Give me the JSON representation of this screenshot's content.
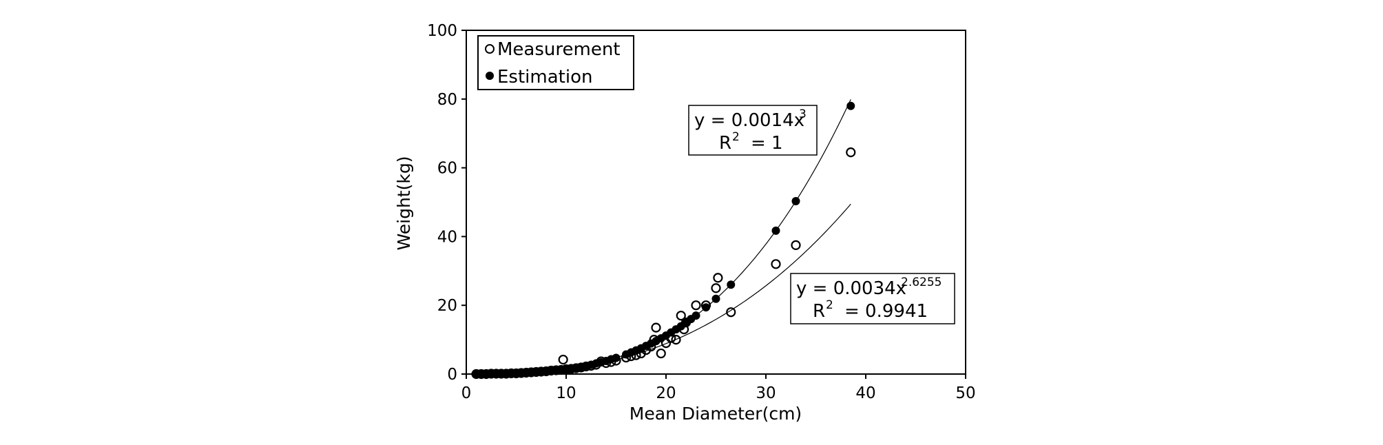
{
  "chart_data": {
    "type": "scatter",
    "xlabel": "Mean Diameter(cm)",
    "ylabel": "Weight(kg)",
    "xlim": [
      0,
      50
    ],
    "ylim": [
      0,
      100
    ],
    "x_ticks": [
      "0",
      "10",
      "20",
      "30",
      "40",
      "50"
    ],
    "y_ticks": [
      "0",
      "20",
      "40",
      "60",
      "80",
      "100"
    ],
    "grid": false,
    "legend_position": "top-left",
    "legend": [
      {
        "label": "Measurement",
        "marker": "open-circle"
      },
      {
        "label": "Estimation",
        "marker": "filled-circle"
      }
    ],
    "series": [
      {
        "name": "Measurement",
        "marker": "open-circle",
        "points": [
          [
            1.0,
            0.0
          ],
          [
            1.5,
            0.0
          ],
          [
            2.0,
            0.0
          ],
          [
            2.5,
            0.1
          ],
          [
            3.0,
            0.1
          ],
          [
            3.5,
            0.1
          ],
          [
            4.0,
            0.1
          ],
          [
            4.5,
            0.2
          ],
          [
            5.0,
            0.2
          ],
          [
            5.5,
            0.3
          ],
          [
            6.0,
            0.4
          ],
          [
            6.5,
            0.5
          ],
          [
            7.0,
            0.6
          ],
          [
            7.5,
            0.7
          ],
          [
            8.0,
            0.8
          ],
          [
            8.5,
            1.0
          ],
          [
            9.0,
            1.1
          ],
          [
            9.5,
            1.2
          ],
          [
            9.7,
            4.2
          ],
          [
            10.0,
            1.4
          ],
          [
            10.5,
            1.5
          ],
          [
            11.0,
            1.7
          ],
          [
            11.5,
            1.9
          ],
          [
            12.0,
            2.2
          ],
          [
            12.5,
            2.4
          ],
          [
            13.0,
            2.7
          ],
          [
            13.5,
            3.7
          ],
          [
            14.0,
            3.2
          ],
          [
            14.5,
            3.5
          ],
          [
            15.0,
            3.9
          ],
          [
            16.0,
            4.8
          ],
          [
            16.5,
            5.2
          ],
          [
            17.0,
            5.5
          ],
          [
            17.5,
            6.0
          ],
          [
            18.0,
            7.0
          ],
          [
            18.5,
            8.0
          ],
          [
            18.8,
            10.0
          ],
          [
            19.0,
            13.5
          ],
          [
            19.5,
            6.0
          ],
          [
            20.0,
            9.0
          ],
          [
            20.5,
            10.5
          ],
          [
            21.0,
            10.0
          ],
          [
            21.5,
            17.0
          ],
          [
            21.8,
            13.0
          ],
          [
            22.0,
            15.0
          ],
          [
            23.0,
            20.0
          ],
          [
            24.0,
            20.0
          ],
          [
            25.0,
            25.0
          ],
          [
            25.2,
            28.0
          ],
          [
            26.5,
            18.0
          ],
          [
            31.0,
            32.0
          ],
          [
            33.0,
            37.5
          ],
          [
            38.5,
            64.5
          ]
        ]
      },
      {
        "name": "Estimation",
        "marker": "filled-circle",
        "points": [
          [
            1.0,
            0.0
          ],
          [
            1.5,
            0.0
          ],
          [
            2.0,
            0.0
          ],
          [
            2.5,
            0.0
          ],
          [
            3.0,
            0.0
          ],
          [
            3.5,
            0.1
          ],
          [
            4.0,
            0.1
          ],
          [
            4.5,
            0.1
          ],
          [
            5.0,
            0.2
          ],
          [
            5.5,
            0.2
          ],
          [
            6.0,
            0.3
          ],
          [
            6.5,
            0.4
          ],
          [
            7.0,
            0.5
          ],
          [
            7.5,
            0.6
          ],
          [
            8.0,
            0.7
          ],
          [
            8.5,
            0.9
          ],
          [
            9.0,
            1.0
          ],
          [
            9.5,
            1.2
          ],
          [
            10.0,
            1.4
          ],
          [
            10.5,
            1.6
          ],
          [
            11.0,
            1.9
          ],
          [
            11.5,
            2.1
          ],
          [
            12.0,
            2.4
          ],
          [
            12.5,
            2.7
          ],
          [
            13.0,
            3.1
          ],
          [
            13.5,
            3.4
          ],
          [
            14.0,
            3.8
          ],
          [
            14.5,
            4.3
          ],
          [
            15.0,
            4.7
          ],
          [
            16.0,
            5.7
          ],
          [
            16.5,
            6.3
          ],
          [
            17.0,
            6.9
          ],
          [
            17.5,
            7.5
          ],
          [
            18.0,
            8.2
          ],
          [
            18.5,
            8.9
          ],
          [
            19.0,
            9.6
          ],
          [
            19.5,
            10.4
          ],
          [
            20.0,
            11.2
          ],
          [
            20.5,
            12.1
          ],
          [
            21.0,
            13.0
          ],
          [
            21.5,
            13.9
          ],
          [
            22.0,
            14.9
          ],
          [
            22.5,
            16.0
          ],
          [
            23.0,
            17.0
          ],
          [
            24.0,
            19.4
          ],
          [
            25.0,
            21.9
          ],
          [
            26.5,
            26.0
          ],
          [
            31.0,
            41.7
          ],
          [
            33.0,
            50.3
          ],
          [
            38.5,
            78.0
          ]
        ]
      }
    ],
    "trendlines": [
      {
        "series": "Estimation",
        "equation": "y = 0.0014x",
        "superscript": "3",
        "r2_label": "R",
        "r2_sup": "2",
        "r2_value": "= 1"
      },
      {
        "series": "Measurement",
        "equation": "y = 0.0034x",
        "superscript": "2.6255",
        "r2_label": "R",
        "r2_sup": "2",
        "r2_value": "= 0.9941"
      }
    ]
  }
}
